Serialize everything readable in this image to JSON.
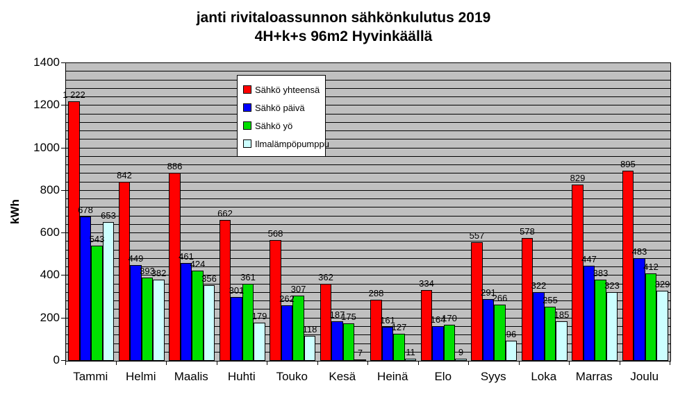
{
  "title": {
    "line1": "janti rivitaloassunnon sähkönkulutus 2019",
    "line2": "4H+k+s 96m2 Hyvinkäällä"
  },
  "chart_data": {
    "type": "bar",
    "title": "janti rivitaloassunnon sähkönkulutus 2019 4H+k+s 96m2 Hyvinkäällä",
    "ylabel": "kWh",
    "xlabel": "",
    "ylim": [
      0,
      1400
    ],
    "y_major_tick": 200,
    "y_minor_grid": 40,
    "grid": true,
    "plot_background": "#c0c0c0",
    "legend_position": "inside-upper-left",
    "y_ticks": [
      0,
      200,
      400,
      600,
      800,
      1000,
      1200,
      1400
    ],
    "categories": [
      "Tammi",
      "Helmi",
      "Maalis",
      "Huhti",
      "Touko",
      "Kesä",
      "Heinä",
      "Elo",
      "Syys",
      "Loka",
      "Marras",
      "Joulu"
    ],
    "series": [
      {
        "name": "Sähkö yhteensä",
        "color": "#ff0000",
        "values": [
          1222,
          842,
          886,
          662,
          568,
          362,
          288,
          334,
          557,
          578,
          829,
          895
        ]
      },
      {
        "name": "Sähkö päivä",
        "color": "#0000ff",
        "values": [
          678,
          449,
          461,
          301,
          262,
          187,
          161,
          164,
          291,
          322,
          447,
          483
        ]
      },
      {
        "name": "Sähkö yö",
        "color": "#00e000",
        "values": [
          543,
          393,
          424,
          361,
          307,
          175,
          127,
          170,
          266,
          255,
          383,
          412
        ]
      },
      {
        "name": "Ilmalämpöpumppu",
        "color": "#ccffff",
        "values": [
          653,
          382,
          356,
          179,
          118,
          7,
          11,
          9,
          96,
          185,
          323,
          329
        ]
      }
    ]
  }
}
